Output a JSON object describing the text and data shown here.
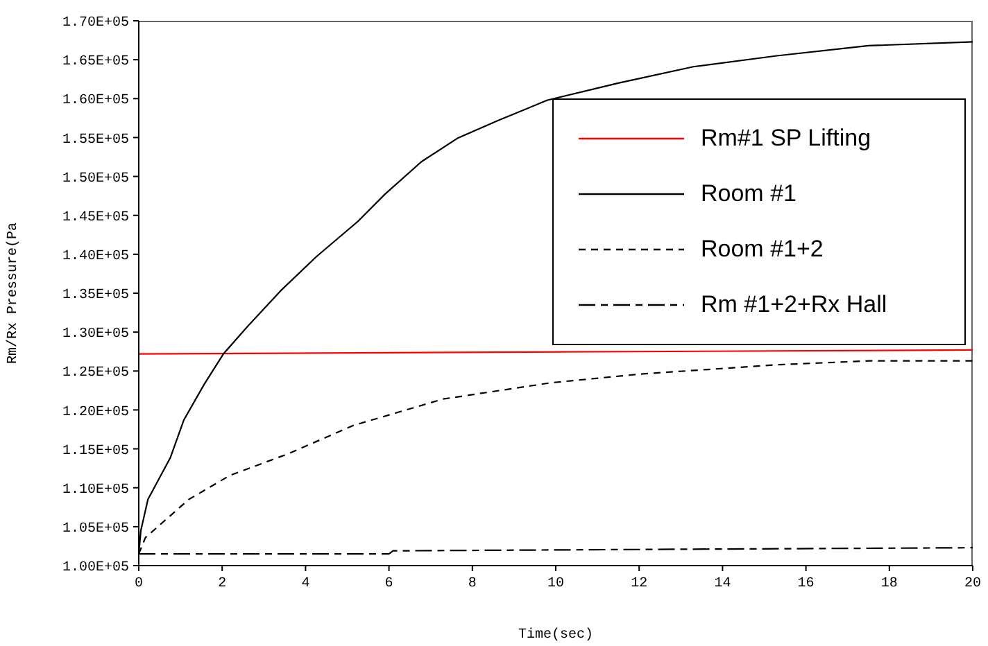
{
  "chart_data": {
    "type": "line",
    "xlabel": "Time(sec)",
    "ylabel": "Rm/Rx Pressure(Pa",
    "xlim": [
      0,
      20
    ],
    "xticks": [
      0,
      2,
      4,
      6,
      8,
      10,
      12,
      14,
      16,
      18,
      20
    ],
    "ylim": [
      100000,
      170000
    ],
    "yticks": [
      {
        "value": 100000,
        "label": "1.00E+05"
      },
      {
        "value": 105000,
        "label": "1.05E+05"
      },
      {
        "value": 110000,
        "label": "1.10E+05"
      },
      {
        "value": 115000,
        "label": "1.15E+05"
      },
      {
        "value": 120000,
        "label": "1.20E+05"
      },
      {
        "value": 125000,
        "label": "1.25E+05"
      },
      {
        "value": 130000,
        "label": "1.30E+05"
      },
      {
        "value": 135000,
        "label": "1.35E+05"
      },
      {
        "value": 140000,
        "label": "1.40E+05"
      },
      {
        "value": 145000,
        "label": "1.45E+05"
      },
      {
        "value": 150000,
        "label": "1.50E+05"
      },
      {
        "value": 155000,
        "label": "1.55E+05"
      },
      {
        "value": 160000,
        "label": "1.60E+05"
      },
      {
        "value": 165000,
        "label": "1.65E+05"
      },
      {
        "value": 170000,
        "label": "1.70E+05"
      }
    ],
    "grid": false,
    "legend": "top right",
    "marker": "none",
    "series": [
      {
        "name": "Rm#1 SP Lifting",
        "color": "#ff0000",
        "line_style": "solid",
        "x": [
          0,
          20
        ],
        "values": [
          127200,
          127700
        ]
      },
      {
        "name": "Room #1",
        "color": "#000000",
        "line_style": "solid",
        "x": [
          0,
          0.05,
          0.22,
          0.76,
          1.08,
          1.57,
          2.03,
          2.62,
          3.4,
          4.26,
          5.25,
          5.9,
          6.78,
          7.64,
          8.62,
          9.8,
          11.5,
          13.3,
          15.3,
          17.5,
          20
        ],
        "values": [
          101500,
          104500,
          108500,
          113900,
          118700,
          123300,
          127200,
          130800,
          135300,
          139700,
          144200,
          147700,
          151900,
          154900,
          157200,
          159800,
          162000,
          164100,
          165500,
          166800,
          167300
        ]
      },
      {
        "name": "Room #1+2",
        "color": "#000000",
        "line_style": "dashed",
        "x": [
          0,
          0.16,
          1.2,
          2.19,
          3.6,
          5.14,
          7.3,
          9.9,
          12,
          15.3,
          17.5,
          20
        ],
        "values": [
          101500,
          103600,
          108500,
          111600,
          114400,
          118000,
          121400,
          123500,
          124600,
          125800,
          126300,
          126300
        ]
      },
      {
        "name": "Rm #1+2+Rx Hall",
        "color": "#000000",
        "line_style": "longdash",
        "x": [
          0,
          6,
          6.1,
          13,
          20
        ],
        "values": [
          101500,
          101500,
          101900,
          102100,
          102300
        ]
      }
    ]
  }
}
